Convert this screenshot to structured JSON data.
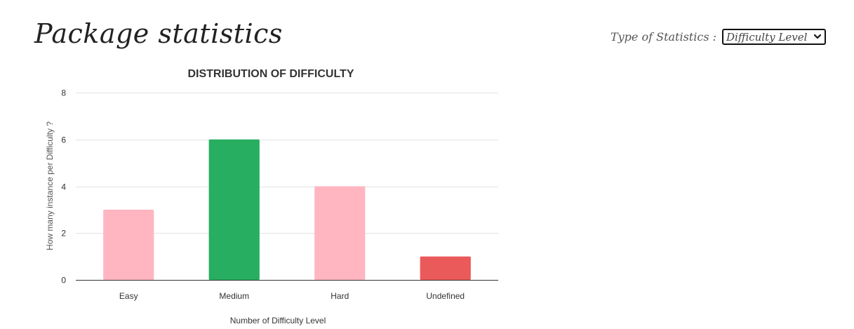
{
  "header": {
    "title": "Package statistics"
  },
  "stats_selector": {
    "label": "Type of Statistics :",
    "selected": "Difficulty Level",
    "arrow_icon": "chevron-down-icon"
  },
  "chart_data": {
    "type": "bar",
    "title": "DISTRIBUTION OF DIFFICULTY",
    "xlabel": "Number of Difficulty Level",
    "ylabel": "How many instance per Difficulty ?",
    "categories": [
      "Easy",
      "Medium",
      "Hard",
      "Undefined"
    ],
    "values": [
      3,
      6,
      4,
      1
    ],
    "colors": [
      "#ffb6c1",
      "#27ae60",
      "#ffb6c1",
      "#eb5a5a"
    ],
    "ylim": [
      0,
      8
    ],
    "yticks": [
      0,
      2,
      4,
      6,
      8
    ],
    "grid": true,
    "legend": "none"
  }
}
